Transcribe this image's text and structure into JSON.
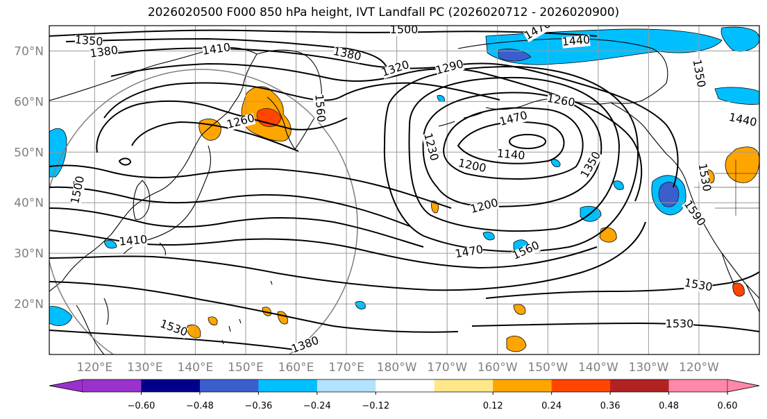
{
  "title": "2026020500 F000 850 hPa height, IVT Landfall PC (2026020712 - 2026020900)",
  "lat_labels": [
    "70°N",
    "60°N",
    "50°N",
    "40°N",
    "30°N",
    "20°N"
  ],
  "lon_labels": [
    "120°E",
    "130°E",
    "140°E",
    "150°E",
    "160°E",
    "170°E",
    "180°W",
    "170°W",
    "160°W",
    "150°W",
    "140°W",
    "130°W",
    "120°W"
  ],
  "map_extent": {
    "lon_min_east": 111,
    "lon_max_east": 252,
    "lat_min": 10,
    "lat_max": 75
  },
  "colorbar": {
    "colors": [
      "#9932cc",
      "#00008b",
      "#3a5fcd",
      "#00bfff",
      "#b2e2ff",
      "#ffffff",
      "#ffe88a",
      "#ffa500",
      "#ff4500",
      "#b22222",
      "#ff88aa"
    ],
    "tick_labels": [
      "−0.60",
      "−0.48",
      "−0.36",
      "−0.24",
      "−0.12",
      "0.12",
      "0.24",
      "0.36",
      "0.48",
      "0.60"
    ]
  },
  "contour_labels": [
    "1500",
    "1470",
    "1440",
    "1350",
    "1380",
    "1410",
    "1380",
    "1320",
    "1290",
    "1260",
    "1260",
    "1560",
    "1470",
    "1230",
    "1140",
    "1200",
    "1200",
    "1350",
    "1440",
    "1500",
    "1500",
    "1410",
    "1470",
    "1560",
    "1590",
    "1530",
    "1530",
    "1530",
    "1530",
    "1380",
    "1350"
  ]
}
